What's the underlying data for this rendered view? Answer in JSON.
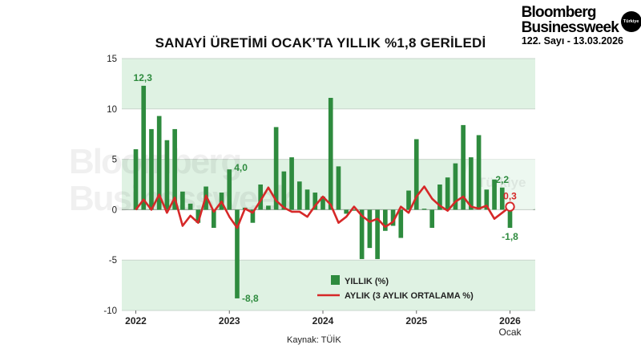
{
  "header": {
    "brand_line1": "Bloomberg",
    "brand_line2": "Businessweek",
    "badge": "Türkiye",
    "issue": "122. Sayı - 13.03.2026"
  },
  "watermark": {
    "line1": "Bloomberg",
    "line2": "Businessweek",
    "badge": "Türkiye"
  },
  "source": "Kaynak: TÜİK",
  "colors": {
    "band": "#dff2e3",
    "bar": "#2e8b3e",
    "line": "#d62828",
    "label_green": "#2e8b3e",
    "label_red": "#d62828"
  },
  "chart_data": {
    "type": "bar",
    "title": "SANAYİ ÜRETİMİ OCAK’TA YILLIK %1,8 GERİLEDİ",
    "ylim": [
      -10,
      15
    ],
    "yticks": [
      "15",
      "10",
      "5",
      "0",
      "-5",
      "-10"
    ],
    "xticks": [
      {
        "label": "2022",
        "index": 0
      },
      {
        "label": "2023",
        "index": 12
      },
      {
        "label": "2024",
        "index": 24
      },
      {
        "label": "2025",
        "index": 36
      },
      {
        "label": "2026",
        "index": 48
      }
    ],
    "xtick_sub": "Ocak",
    "grid": true,
    "legend_position": "bottom-right",
    "series": [
      {
        "name": "YILLIK (%)",
        "kind": "bar",
        "values": [
          6.0,
          12.3,
          8.0,
          9.3,
          6.9,
          8.0,
          1.8,
          0.6,
          -1.3,
          2.3,
          -1.8,
          1.7,
          4.0,
          -8.8,
          0.2,
          -1.3,
          2.5,
          0.4,
          8.2,
          3.8,
          5.2,
          2.8,
          2.0,
          1.7,
          1.3,
          11.1,
          4.3,
          -0.4,
          -0.1,
          -4.9,
          -3.8,
          -4.9,
          -2.1,
          -1.6,
          -2.8,
          1.9,
          7.0,
          0.1,
          -1.8,
          2.5,
          3.2,
          4.6,
          8.4,
          5.2,
          7.4,
          2.0,
          3.0,
          2.2,
          -1.8
        ]
      },
      {
        "name": "AYLIK (3 AYLIK ORTALAMA %)",
        "kind": "line",
        "values": [
          0.0,
          1.0,
          0.0,
          1.5,
          -0.3,
          1.2,
          -1.6,
          -0.6,
          -1.3,
          1.4,
          -0.2,
          0.8,
          -0.7,
          -1.8,
          0.1,
          -0.3,
          0.9,
          2.2,
          0.9,
          0.2,
          -0.2,
          -0.2,
          -0.7,
          0.4,
          1.3,
          0.5,
          -1.3,
          -0.7,
          0.3,
          -0.6,
          -1.2,
          -0.9,
          -1.7,
          -1.2,
          0.3,
          -0.3,
          1.3,
          2.3,
          1.1,
          0.4,
          -0.1,
          0.8,
          1.3,
          0.3,
          0.1,
          0.4,
          -0.9,
          -0.3,
          0.3
        ]
      }
    ],
    "annotations": [
      {
        "index": 1,
        "text": "12,3",
        "color": "green",
        "pos": "above"
      },
      {
        "index": 12,
        "text": "4,0",
        "color": "green",
        "pos": "right-above"
      },
      {
        "index": 13,
        "text": "-8,8",
        "color": "green",
        "pos": "right-below"
      },
      {
        "index": 47,
        "text": "2,2",
        "color": "green",
        "pos": "above"
      },
      {
        "index": 48,
        "text": "-1,8",
        "color": "green",
        "pos": "below"
      },
      {
        "index": 48,
        "text": "0,3",
        "color": "red",
        "pos": "above"
      }
    ]
  }
}
